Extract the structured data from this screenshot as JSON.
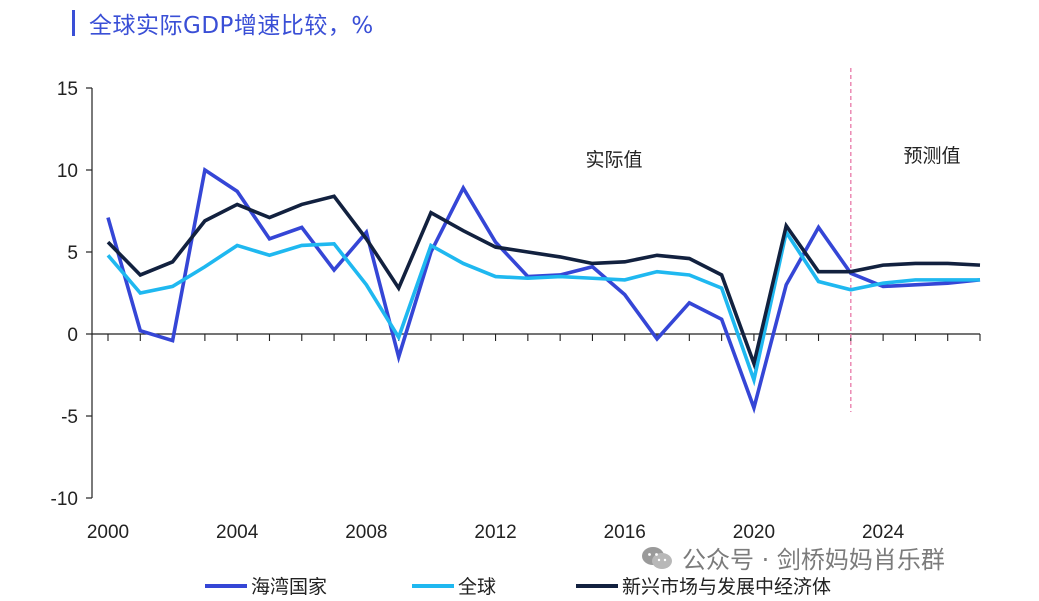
{
  "title": "全球实际GDP增速比较，%",
  "watermark": "公众号 · 剑桥妈妈肖乐群",
  "chart_data": {
    "type": "line",
    "x": [
      2000,
      2001,
      2002,
      2003,
      2004,
      2005,
      2006,
      2007,
      2008,
      2009,
      2010,
      2011,
      2012,
      2013,
      2014,
      2015,
      2016,
      2017,
      2018,
      2019,
      2020,
      2021,
      2022,
      2023,
      2024,
      2025,
      2026,
      2027
    ],
    "xlim": [
      2000,
      2027
    ],
    "ylim": [
      -10,
      15
    ],
    "xticks": [
      2000,
      2004,
      2008,
      2012,
      2016,
      2020,
      2024
    ],
    "yticks": [
      -10,
      -5,
      0,
      5,
      10,
      15
    ],
    "xtick_labels": [
      "2000",
      "2004",
      "2008",
      "2012",
      "2016",
      "2020",
      "2024"
    ],
    "ytick_labels": [
      "-10",
      "-5",
      "0",
      "5",
      "10",
      "15"
    ],
    "forecast_start": 2023,
    "annotations": {
      "actual": "实际值",
      "forecast": "预测值"
    },
    "legend_position": "bottom",
    "series": [
      {
        "name": "海湾国家",
        "color": "#3546d6",
        "values": [
          7.1,
          0.2,
          -0.4,
          10.0,
          8.7,
          5.8,
          6.5,
          3.9,
          6.2,
          -1.4,
          5.0,
          8.9,
          5.6,
          3.5,
          3.6,
          4.1,
          2.4,
          -0.3,
          1.9,
          0.9,
          -4.5,
          3.0,
          6.5,
          3.7,
          2.9,
          3.0,
          3.1,
          3.3
        ]
      },
      {
        "name": "全球",
        "color": "#1fb8f0",
        "values": [
          4.8,
          2.5,
          2.9,
          4.1,
          5.4,
          4.8,
          5.4,
          5.5,
          3.0,
          -0.2,
          5.4,
          4.3,
          3.5,
          3.4,
          3.5,
          3.4,
          3.3,
          3.8,
          3.6,
          2.8,
          -2.8,
          6.2,
          3.2,
          2.7,
          3.1,
          3.3,
          3.3,
          3.3
        ]
      },
      {
        "name": "新兴市场与发展中经济体",
        "color": "#12213f",
        "values": [
          5.6,
          3.6,
          4.4,
          6.9,
          7.9,
          7.1,
          7.9,
          8.4,
          5.8,
          2.8,
          7.4,
          6.3,
          5.3,
          5.0,
          4.7,
          4.3,
          4.4,
          4.8,
          4.6,
          3.6,
          -1.8,
          6.6,
          3.8,
          3.8,
          4.2,
          4.3,
          4.3,
          4.2
        ]
      }
    ]
  }
}
